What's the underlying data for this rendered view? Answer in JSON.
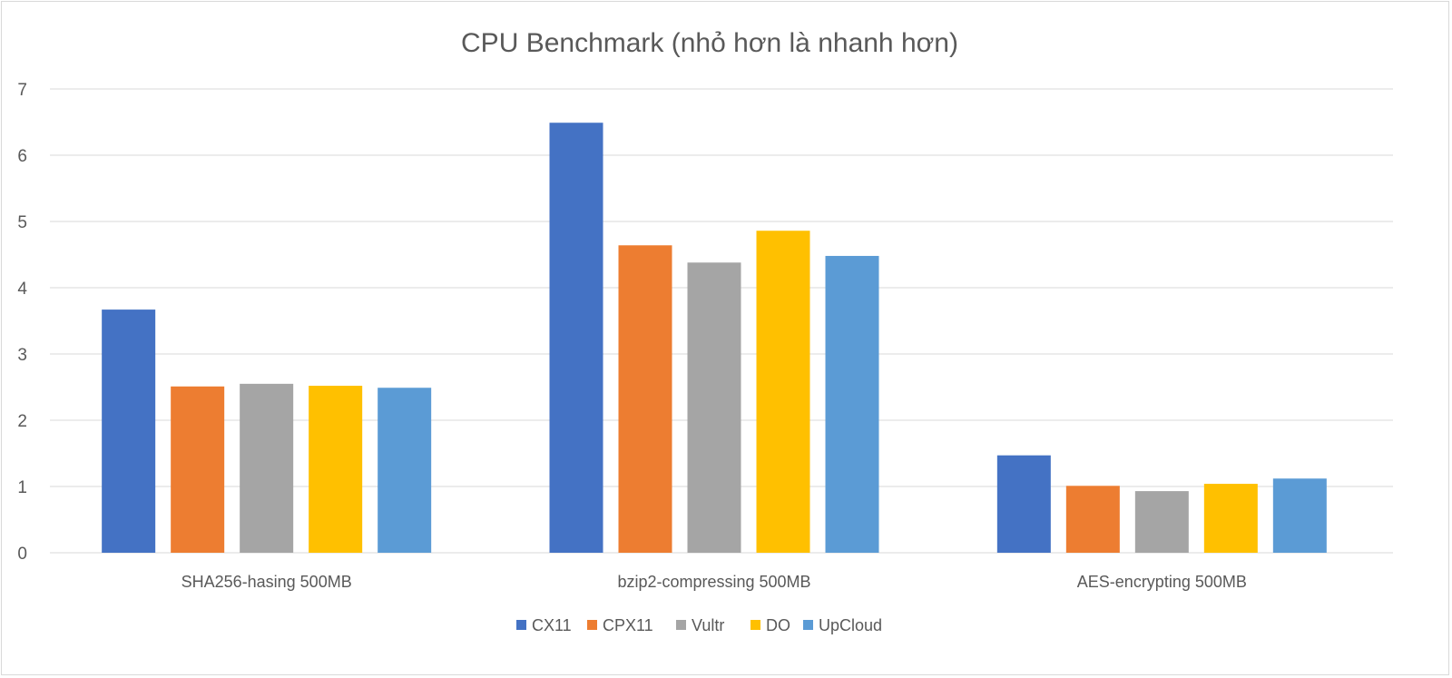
{
  "chart_data": {
    "type": "bar",
    "title": "CPU Benchmark (nhỏ hơn là nhanh hơn)",
    "xlabel": "",
    "ylabel": "",
    "ylim": [
      0,
      7
    ],
    "yticks": [
      0,
      1,
      2,
      3,
      4,
      5,
      6,
      7
    ],
    "grid": true,
    "legend": "bottom",
    "categories": [
      "SHA256-hasing 500MB",
      "bzip2-compressing 500MB",
      "AES-encrypting 500MB"
    ],
    "series": [
      {
        "name": "CX11",
        "color": "#4472c4",
        "values": [
          3.67,
          6.49,
          1.47
        ]
      },
      {
        "name": "CPX11",
        "color": "#ed7d31",
        "values": [
          2.51,
          4.64,
          1.01
        ]
      },
      {
        "name": "Vultr",
        "color": "#a5a5a5",
        "values": [
          2.55,
          4.38,
          0.93
        ]
      },
      {
        "name": "DO",
        "color": "#ffc000",
        "values": [
          2.52,
          4.86,
          1.04
        ]
      },
      {
        "name": "UpCloud",
        "color": "#5b9bd5",
        "values": [
          2.49,
          4.48,
          1.12
        ]
      }
    ]
  }
}
